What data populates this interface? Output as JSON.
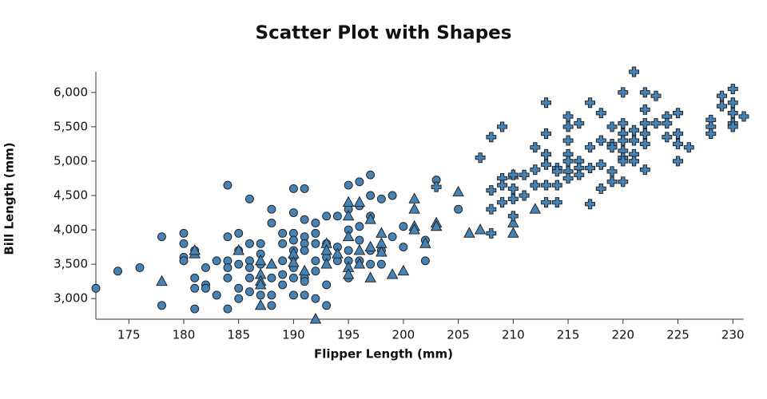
{
  "chart_data": {
    "type": "scatter",
    "title": "Scatter Plot with Shapes",
    "x_label": "Flipper Length (mm)",
    "y_label": "Bill Length (mm)",
    "xlim": [
      172,
      231
    ],
    "ylim": [
      2700,
      6300
    ],
    "xticks": [
      175,
      180,
      185,
      190,
      195,
      200,
      205,
      210,
      215,
      220,
      225,
      230
    ],
    "yticks": [
      {
        "value": 3000,
        "label": "3,000"
      },
      {
        "value": 3500,
        "label": "3,500"
      },
      {
        "value": 4000,
        "label": "4,000"
      },
      {
        "value": 4500,
        "label": "4,500"
      },
      {
        "value": 5000,
        "label": "5,000"
      },
      {
        "value": 5500,
        "label": "5,500"
      },
      {
        "value": 6000,
        "label": "6,000"
      }
    ],
    "series": [
      {
        "shape": "circle",
        "color": "#4682b4",
        "x": [
          172,
          174,
          176,
          178,
          178,
          180,
          180,
          180,
          180,
          181,
          181,
          181,
          181,
          182,
          182,
          182,
          183,
          183,
          184,
          184,
          184,
          184,
          184,
          184,
          185,
          185,
          185,
          185,
          185,
          186,
          186,
          186,
          186,
          186,
          186,
          187,
          187,
          187,
          187,
          188,
          188,
          188,
          188,
          188,
          189,
          189,
          189,
          189,
          189,
          190,
          190,
          190,
          190,
          190,
          190,
          190,
          190,
          190,
          191,
          191,
          191,
          191,
          191,
          191,
          191,
          191,
          192,
          192,
          192,
          192,
          192,
          192,
          193,
          193,
          193,
          193,
          193,
          194,
          194,
          194,
          195,
          195,
          195,
          195,
          195,
          195,
          196,
          196,
          196,
          196,
          196,
          197,
          197,
          197,
          197,
          197,
          198,
          198,
          198,
          199,
          199,
          200,
          200,
          202,
          202,
          203,
          205
        ],
        "values": [
          3150,
          3400,
          3450,
          3900,
          2900,
          3950,
          3800,
          3600,
          3550,
          3300,
          3150,
          2850,
          3700,
          3200,
          3150,
          3450,
          3550,
          3050,
          4650,
          3900,
          3550,
          3450,
          3300,
          2850,
          3950,
          3700,
          3500,
          3150,
          3000,
          4450,
          3800,
          3550,
          3450,
          3300,
          3100,
          3800,
          3650,
          3500,
          3050,
          4300,
          4100,
          3300,
          3050,
          2900,
          3950,
          3800,
          3550,
          3350,
          3200,
          4600,
          4250,
          3950,
          3850,
          3700,
          3600,
          3450,
          3300,
          3050,
          4600,
          4150,
          3900,
          3800,
          3700,
          3300,
          3250,
          3050,
          4100,
          3950,
          3800,
          3550,
          3400,
          3000,
          4200,
          3800,
          3600,
          3200,
          2900,
          4200,
          3750,
          3550,
          4650,
          4300,
          4000,
          3700,
          3550,
          3300,
          4700,
          4350,
          4050,
          3850,
          3550,
          4800,
          4500,
          4200,
          3700,
          3500,
          4450,
          3700,
          3500,
          4500,
          3900,
          4050,
          3750,
          3850,
          3550,
          4725,
          4300
        ]
      },
      {
        "shape": "triangle",
        "color": "#4682b4",
        "x": [
          178,
          181,
          181,
          185,
          187,
          187,
          187,
          187,
          187,
          188,
          190,
          190,
          191,
          192,
          193,
          193,
          193,
          194,
          195,
          195,
          195,
          195,
          195,
          196,
          196,
          196,
          197,
          197,
          197,
          198,
          198,
          198,
          199,
          200,
          201,
          201,
          201,
          201,
          202,
          203,
          203,
          205,
          206,
          207,
          210,
          210,
          210,
          212
        ],
        "values": [
          3250,
          3650,
          3700,
          3700,
          3550,
          3350,
          3250,
          3200,
          2900,
          3500,
          3650,
          3525,
          3400,
          2700,
          3800,
          3700,
          3500,
          3650,
          4400,
          4200,
          3900,
          3450,
          3350,
          4400,
          3700,
          3500,
          4150,
          3750,
          3300,
          3950,
          3800,
          3675,
          3350,
          3400,
          4450,
          4300,
          4050,
          4000,
          3800,
          4100,
          4050,
          4550,
          3950,
          4000,
          4800,
          4100,
          3950,
          4300
        ]
      },
      {
        "shape": "cross",
        "color": "#4682b4",
        "x": [
          203,
          207,
          208,
          208,
          208,
          208,
          209,
          209,
          209,
          209,
          210,
          210,
          210,
          210,
          211,
          211,
          212,
          212,
          212,
          213,
          213,
          213,
          213,
          213,
          213,
          214,
          214,
          214,
          214,
          215,
          215,
          215,
          215,
          215,
          215,
          215,
          216,
          216,
          216,
          216,
          217,
          217,
          217,
          217,
          218,
          218,
          218,
          218,
          219,
          219,
          219,
          219,
          219,
          220,
          220,
          220,
          220,
          220,
          220,
          220,
          220,
          221,
          221,
          221,
          221,
          221,
          222,
          222,
          222,
          222,
          222,
          222,
          223,
          223,
          224,
          224,
          224,
          225,
          225,
          225,
          225,
          226,
          228,
          228,
          228,
          229,
          229,
          230,
          230,
          230,
          230,
          230,
          231
        ],
        "values": [
          4625,
          5050,
          5350,
          4575,
          4300,
          3950,
          5500,
          4750,
          4650,
          4400,
          4800,
          4600,
          4450,
          4200,
          4800,
          4500,
          5200,
          4875,
          4650,
          5850,
          5400,
          5100,
          4950,
          4650,
          4400,
          4900,
          4850,
          4650,
          4400,
          5650,
          5500,
          5300,
          5100,
          5000,
          4850,
          4750,
          5550,
          5000,
          4900,
          4800,
          5850,
          5200,
          4900,
          4375,
          5700,
          5300,
          4950,
          4600,
          5500,
          5250,
          5200,
          4850,
          4700,
          6000,
          5550,
          5400,
          5300,
          5150,
          5050,
          5000,
          4700,
          6300,
          5450,
          5300,
          5100,
          5000,
          6000,
          5750,
          5550,
          5400,
          5250,
          4875,
          5950,
          5550,
          5650,
          5550,
          5350,
          5700,
          5400,
          5250,
          5000,
          5200,
          5600,
          5500,
          5400,
          5950,
          5800,
          6050,
          5850,
          5700,
          5550,
          5500,
          5650
        ]
      }
    ]
  }
}
